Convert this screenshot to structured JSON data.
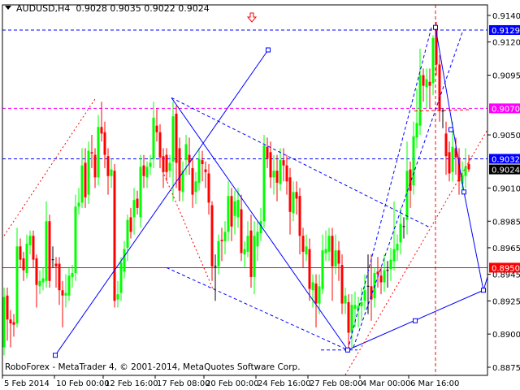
{
  "header": {
    "symbol": "AUDUSD,H4",
    "ohlc": "0.9028 0.9035 0.9022 0.9024"
  },
  "copyright": "RoboForex - MetaTrader 4, © 2001-2014, MetaQuotes Software Corp.",
  "chart_data": {
    "type": "candlestick",
    "symbol": "AUDUSD",
    "timeframe": "H4",
    "ylim": [
      0.8875,
      0.914
    ],
    "y_ticks": [
      "0.9140",
      "0.9120",
      "0.9095",
      "0.9050",
      "0.9010",
      "0.8985",
      "0.8965",
      "0.8945",
      "0.8925",
      "0.8900",
      "0.8875"
    ],
    "x_ticks": [
      {
        "bar": 0,
        "label": "5 Feb 2014"
      },
      {
        "bar": 16,
        "label": "10 Feb 00:00"
      },
      {
        "bar": 31,
        "label": "12 Feb 16:00"
      },
      {
        "bar": 47,
        "label": "17 Feb 08:00"
      },
      {
        "bar": 62,
        "label": "20 Feb 00:00"
      },
      {
        "bar": 78,
        "label": "24 Feb 16:00"
      },
      {
        "bar": 94,
        "label": "27 Feb 08:00"
      },
      {
        "bar": 110,
        "label": "4 Mar 00:00"
      },
      {
        "bar": 125,
        "label": "6 Mar 16:00"
      }
    ],
    "price_labels": [
      {
        "price": 0.9129,
        "label": "0.9129",
        "color": "#0000ff"
      },
      {
        "price": 0.907,
        "label": "0.9070",
        "color": "#ff00ff"
      },
      {
        "price": 0.9032,
        "label": "0.9032",
        "color": "#0000ff"
      },
      {
        "price": 0.9024,
        "label": "0.9024",
        "color": "#000000"
      },
      {
        "price": 0.895,
        "label": "0.8950",
        "color": "#ff0000"
      }
    ],
    "colors": {
      "up": "#00ff00",
      "down": "#ff0000",
      "doji": "#000000"
    },
    "candles_ohlc": [
      [
        0.889,
        0.8935,
        0.8884,
        0.8928
      ],
      [
        0.8929,
        0.8935,
        0.8895,
        0.8911
      ],
      [
        0.8911,
        0.8918,
        0.889,
        0.8908
      ],
      [
        0.8909,
        0.8915,
        0.8898,
        0.8907
      ],
      [
        0.8908,
        0.898,
        0.8905,
        0.8966
      ],
      [
        0.8966,
        0.8972,
        0.895,
        0.8956
      ],
      [
        0.8957,
        0.8962,
        0.894,
        0.8948
      ],
      [
        0.8946,
        0.8975,
        0.8942,
        0.8968
      ],
      [
        0.8967,
        0.8978,
        0.896,
        0.8974
      ],
      [
        0.8974,
        0.8978,
        0.895,
        0.8956
      ],
      [
        0.8957,
        0.896,
        0.892,
        0.8937
      ],
      [
        0.8936,
        0.8948,
        0.893,
        0.894
      ],
      [
        0.8939,
        0.895,
        0.8933,
        0.8942
      ],
      [
        0.894,
        0.9,
        0.8935,
        0.8985
      ],
      [
        0.8985,
        0.899,
        0.8935,
        0.894
      ],
      [
        0.8956,
        0.8966,
        0.895,
        0.8956
      ],
      [
        0.8953,
        0.8958,
        0.8935,
        0.8951
      ],
      [
        0.8953,
        0.8958,
        0.8922,
        0.8933
      ],
      [
        0.8933,
        0.894,
        0.8905,
        0.8929
      ],
      [
        0.8929,
        0.8945,
        0.892,
        0.8931
      ],
      [
        0.8929,
        0.895,
        0.8925,
        0.8944
      ],
      [
        0.8943,
        0.8952,
        0.8935,
        0.8946
      ],
      [
        0.8946,
        0.9005,
        0.894,
        0.8996
      ],
      [
        0.8996,
        0.901,
        0.899,
        0.8999
      ],
      [
        0.8999,
        0.904,
        0.8995,
        0.9027
      ],
      [
        0.9029,
        0.904,
        0.8995,
        0.9003
      ],
      [
        0.9005,
        0.9045,
        0.8998,
        0.9038
      ],
      [
        0.9037,
        0.905,
        0.9025,
        0.9036
      ],
      [
        0.9035,
        0.904,
        0.901,
        0.9018
      ],
      [
        0.9018,
        0.9065,
        0.9012,
        0.9056
      ],
      [
        0.9056,
        0.9075,
        0.9045,
        0.9051
      ],
      [
        0.9052,
        0.906,
        0.9025,
        0.9035
      ],
      [
        0.9034,
        0.904,
        0.9005,
        0.9019
      ],
      [
        0.9019,
        0.9032,
        0.901,
        0.9024
      ],
      [
        0.9023,
        0.9028,
        0.892,
        0.8925
      ],
      [
        0.8926,
        0.894,
        0.892,
        0.893
      ],
      [
        0.8931,
        0.8958,
        0.8925,
        0.8954
      ],
      [
        0.8947,
        0.897,
        0.8942,
        0.8964
      ],
      [
        0.8965,
        0.899,
        0.8955,
        0.8986
      ],
      [
        0.8988,
        0.8995,
        0.8972,
        0.8977
      ],
      [
        0.8988,
        0.901,
        0.8975,
        0.9001
      ],
      [
        0.9002,
        0.9008,
        0.899,
        0.8995
      ],
      [
        0.8988,
        0.9035,
        0.898,
        0.9026
      ],
      [
        0.9027,
        0.9035,
        0.901,
        0.9019
      ],
      [
        0.9018,
        0.903,
        0.901,
        0.9026
      ],
      [
        0.9026,
        0.9035,
        0.902,
        0.9029
      ],
      [
        0.9032,
        0.9075,
        0.9025,
        0.9063
      ],
      [
        0.9057,
        0.907,
        0.9045,
        0.9052
      ],
      [
        0.9052,
        0.9058,
        0.9025,
        0.9033
      ],
      [
        0.9034,
        0.904,
        0.901,
        0.9022
      ],
      [
        0.9035,
        0.904,
        0.9015,
        0.9022
      ],
      [
        0.9023,
        0.9035,
        0.9018,
        0.9029
      ],
      [
        0.903,
        0.9075,
        0.9,
        0.9064
      ],
      [
        0.9066,
        0.9072,
        0.901,
        0.9029
      ],
      [
        0.904,
        0.9048,
        0.9,
        0.9008
      ],
      [
        0.9007,
        0.903,
        0.9,
        0.9023
      ],
      [
        0.9031,
        0.905,
        0.902,
        0.9043
      ],
      [
        0.9035,
        0.9048,
        0.902,
        0.9029
      ],
      [
        0.9025,
        0.9032,
        0.8995,
        0.9005
      ],
      [
        0.9007,
        0.9022,
        0.8998,
        0.9015
      ],
      [
        0.9014,
        0.904,
        0.9008,
        0.9032
      ],
      [
        0.9031,
        0.9038,
        0.9015,
        0.9028
      ],
      [
        0.9024,
        0.903,
        0.901,
        0.9022
      ],
      [
        0.9021,
        0.9028,
        0.899,
        0.8999
      ],
      [
        0.8997,
        0.9,
        0.894,
        0.8951
      ],
      [
        0.8951,
        0.896,
        0.8925,
        0.8951
      ],
      [
        0.8951,
        0.8975,
        0.8945,
        0.897
      ],
      [
        0.8971,
        0.898,
        0.8955,
        0.897
      ],
      [
        0.897,
        0.8985,
        0.896,
        0.8977
      ],
      [
        0.8977,
        0.9015,
        0.897,
        0.9004
      ],
      [
        0.9004,
        0.901,
        0.897,
        0.8981
      ],
      [
        0.8989,
        0.9008,
        0.8975,
        0.9
      ],
      [
        0.8988,
        0.901,
        0.898,
        0.9001
      ],
      [
        0.8994,
        0.9005,
        0.8955,
        0.8961
      ],
      [
        0.896,
        0.897,
        0.895,
        0.8964
      ],
      [
        0.8962,
        0.8985,
        0.8958,
        0.8974
      ],
      [
        0.8978,
        0.899,
        0.8935,
        0.8943
      ],
      [
        0.8943,
        0.8985,
        0.893,
        0.8974
      ],
      [
        0.8966,
        0.8985,
        0.8955,
        0.8977
      ],
      [
        0.8976,
        0.8995,
        0.897,
        0.8985
      ],
      [
        0.8985,
        0.905,
        0.898,
        0.9042
      ],
      [
        0.9041,
        0.9048,
        0.9025,
        0.9032
      ],
      [
        0.9037,
        0.9045,
        0.901,
        0.9018
      ],
      [
        0.9018,
        0.9035,
        0.9005,
        0.9023
      ],
      [
        0.9023,
        0.9035,
        0.9,
        0.9014
      ],
      [
        0.9013,
        0.904,
        0.9008,
        0.9031
      ],
      [
        0.9031,
        0.904,
        0.9015,
        0.9027
      ],
      [
        0.9027,
        0.9035,
        0.9005,
        0.9015
      ],
      [
        0.9018,
        0.9025,
        0.8975,
        0.8992
      ],
      [
        0.8991,
        0.9015,
        0.8985,
        0.9007
      ],
      [
        0.9007,
        0.9015,
        0.899,
        0.9002
      ],
      [
        0.9004,
        0.901,
        0.896,
        0.8974
      ],
      [
        0.8974,
        0.898,
        0.895,
        0.8962
      ],
      [
        0.896,
        0.8975,
        0.8955,
        0.8966
      ],
      [
        0.8964,
        0.8972,
        0.8925,
        0.8934
      ],
      [
        0.8933,
        0.8945,
        0.892,
        0.8939
      ],
      [
        0.8938,
        0.8945,
        0.8905,
        0.8923
      ],
      [
        0.8923,
        0.8945,
        0.8915,
        0.8936
      ],
      [
        0.8934,
        0.8975,
        0.893,
        0.8963
      ],
      [
        0.8961,
        0.8978,
        0.8955,
        0.8964
      ],
      [
        0.8962,
        0.898,
        0.8955,
        0.8974
      ],
      [
        0.8974,
        0.898,
        0.8925,
        0.8951
      ],
      [
        0.8951,
        0.8975,
        0.8945,
        0.8963
      ],
      [
        0.8963,
        0.897,
        0.894,
        0.8953
      ],
      [
        0.8952,
        0.896,
        0.8915,
        0.8923
      ],
      [
        0.8923,
        0.8935,
        0.8915,
        0.8929
      ],
      [
        0.8924,
        0.893,
        0.8888,
        0.8901
      ],
      [
        0.8901,
        0.893,
        0.889,
        0.8922
      ],
      [
        0.8919,
        0.8932,
        0.8905,
        0.8922
      ],
      [
        0.8918,
        0.8928,
        0.8905,
        0.8921
      ],
      [
        0.8921,
        0.8935,
        0.891,
        0.8924
      ],
      [
        0.8925,
        0.8945,
        0.8918,
        0.8933
      ],
      [
        0.8936,
        0.896,
        0.8915,
        0.8936
      ],
      [
        0.8936,
        0.896,
        0.891,
        0.8926
      ],
      [
        0.8927,
        0.895,
        0.892,
        0.8946
      ],
      [
        0.8947,
        0.8958,
        0.8935,
        0.8945
      ],
      [
        0.8944,
        0.895,
        0.893,
        0.8939
      ],
      [
        0.8939,
        0.896,
        0.8932,
        0.8948
      ],
      [
        0.8948,
        0.8955,
        0.8935,
        0.8948
      ],
      [
        0.8949,
        0.8965,
        0.894,
        0.8956
      ],
      [
        0.8955,
        0.9,
        0.8948,
        0.8964
      ],
      [
        0.8963,
        0.8975,
        0.8955,
        0.8968
      ],
      [
        0.8969,
        0.8995,
        0.896,
        0.8983
      ],
      [
        0.8981,
        0.8988,
        0.8972,
        0.8981
      ],
      [
        0.8986,
        0.9045,
        0.8975,
        0.9023
      ],
      [
        0.9024,
        0.903,
        0.8995,
        0.9008
      ],
      [
        0.9012,
        0.906,
        0.9005,
        0.9049
      ],
      [
        0.9048,
        0.9085,
        0.904,
        0.9059
      ],
      [
        0.9057,
        0.9115,
        0.905,
        0.9095
      ],
      [
        0.9095,
        0.91,
        0.9075,
        0.9087
      ],
      [
        0.9086,
        0.91,
        0.907,
        0.9092
      ],
      [
        0.909,
        0.91,
        0.907,
        0.9087
      ],
      [
        0.9089,
        0.9125,
        0.908,
        0.9123
      ],
      [
        0.913,
        0.9135,
        0.9095,
        0.9103
      ],
      [
        0.9103,
        0.911,
        0.906,
        0.9068
      ],
      [
        0.9068,
        0.907,
        0.9055,
        0.9068
      ],
      [
        0.9051,
        0.906,
        0.902,
        0.9034
      ],
      [
        0.9037,
        0.9045,
        0.9015,
        0.9021
      ],
      [
        0.9022,
        0.906,
        0.9015,
        0.9041
      ],
      [
        0.904,
        0.9048,
        0.902,
        0.9033
      ],
      [
        0.9033,
        0.904,
        0.9005,
        0.9015
      ],
      [
        0.9013,
        0.903,
        0.9005,
        0.902
      ],
      [
        0.9019,
        0.904,
        0.901,
        0.9026
      ],
      [
        0.9028,
        0.9035,
        0.9022,
        0.9024
      ]
    ],
    "horizontal_lines": [
      {
        "price": 0.9129,
        "color": "#0000ff",
        "style": "dashed"
      },
      {
        "price": 0.907,
        "color": "#ff00ff",
        "style": "dashed"
      },
      {
        "price": 0.9032,
        "color": "#0000ff",
        "style": "dashed"
      },
      {
        "price": 0.895,
        "color": "#ff0000",
        "style": "solid"
      }
    ],
    "vertical_lines": [
      {
        "bar": 132.75,
        "color": "#ff0000",
        "style": "dashed"
      }
    ],
    "trend_lines": [
      {
        "from": [
          15.75,
          0.8884
        ],
        "to": [
          81.25,
          0.9114
        ],
        "color": "#0000ff",
        "style": "solid"
      },
      {
        "from": [
          51.5,
          0.9078
        ],
        "to": [
          105.75,
          0.8888
        ],
        "color": "#0000ff",
        "style": "solid"
      },
      {
        "from": [
          105.75,
          0.8888
        ],
        "to": [
          147.5,
          0.8933
        ],
        "color": "#0000ff",
        "style": "solid"
      },
      {
        "from": [
          147.5,
          0.8933
        ],
        "to": [
          148.75,
          0.8943
        ],
        "color": "#0000ff",
        "style": "solid"
      },
      {
        "from": [
          132.75,
          0.9131
        ],
        "to": [
          141.5,
          0.9007
        ],
        "color": "#0000ff",
        "style": "solid"
      },
      {
        "from": [
          141.5,
          0.9007
        ],
        "to": [
          147.5,
          0.8933
        ],
        "color": "#0000ff",
        "style": "solid"
      },
      {
        "from": [
          51.5,
          0.9078
        ],
        "to": [
          131.25,
          0.898
        ],
        "color": "#0000ff",
        "style": "dashed"
      },
      {
        "from": [
          50,
          0.895
        ],
        "to": [
          105.75,
          0.8888
        ],
        "color": "#0000ff",
        "style": "dashed"
      },
      {
        "from": [
          105.75,
          0.8888
        ],
        "to": [
          131.5,
          0.9131
        ],
        "color": "#0000ff",
        "style": "dashed"
      },
      {
        "from": [
          107.5,
          0.889
        ],
        "to": [
          141.25,
          0.9129
        ],
        "color": "#0000ff",
        "style": "dashed"
      },
      {
        "from": [
          97.5,
          0.8888
        ],
        "to": [
          108.75,
          0.8888
        ],
        "color": "#0000ff",
        "style": "dashed"
      },
      {
        "from": [
          0,
          0.8974
        ],
        "to": [
          28.25,
          0.9078
        ],
        "color": "#ff0000",
        "style": "dotted"
      },
      {
        "from": [
          48.75,
          0.9023
        ],
        "to": [
          64.25,
          0.8934
        ],
        "color": "#ff0000",
        "style": "dotted"
      },
      {
        "from": [
          103.75,
          0.8864
        ],
        "to": [
          148.75,
          0.9054
        ],
        "color": "#ff0000",
        "style": "dotted"
      },
      {
        "from": [
          126.25,
          0.9068
        ],
        "to": [
          143.75,
          0.9069
        ],
        "color": "#ff0000",
        "style": "dashed"
      }
    ],
    "markers": [
      [
        15.75,
        0.8884
      ],
      [
        81.25,
        0.9114
      ],
      [
        132.75,
        0.9131
      ],
      [
        137.5,
        0.9054
      ],
      [
        141.5,
        0.9007
      ],
      [
        147.5,
        0.8933
      ],
      [
        126.5,
        0.891
      ],
      [
        105.75,
        0.8888
      ]
    ],
    "sell_arrow": {
      "bar": 76.25,
      "color": "#ff0000"
    }
  }
}
